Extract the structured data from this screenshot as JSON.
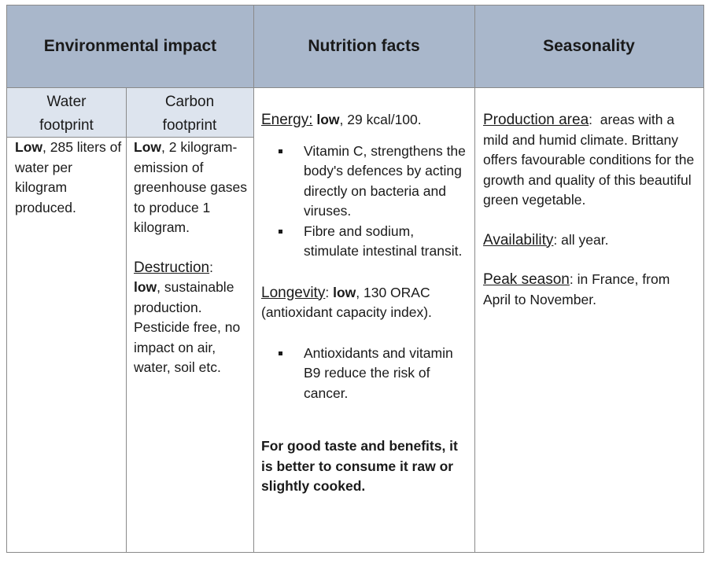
{
  "headers": {
    "environmental": "Environmental impact",
    "nutrition": "Nutrition facts",
    "seasonality": "Seasonality"
  },
  "sub_headers": {
    "water_line1": "Water",
    "water_line2": "footprint",
    "carbon_line1": "Carbon",
    "carbon_line2": "footprint"
  },
  "water": {
    "low": "Low",
    "text": ", 285 liters of water per kilogram produced."
  },
  "carbon": {
    "low": "Low",
    "text": ", 2 kilogram-emission of greenhouse gases to produce 1 kilogram.",
    "destruction_label": "Destruction",
    "destruction_colon": ":",
    "destruction_low": "low",
    "destruction_text": ", sustainable production. Pesticide free, no impact on air, water, soil etc."
  },
  "nutrition": {
    "energy_label": "Energy:",
    "energy_low": "low",
    "energy_text": ", 29 kcal/100.",
    "energy_bullets": [
      "Vitamin C, strengthens the body's defences by acting directly on bacteria and viruses.",
      "Fibre and sodium, stimulate intestinal transit."
    ],
    "longevity_label": "Longevity",
    "longevity_colon": ":",
    "longevity_low": "low",
    "longevity_text": ", 130 ORAC (antioxidant capacity index).",
    "longevity_bullets": [
      "Antioxidants and vitamin B9 reduce the risk of cancer."
    ],
    "advice": "For good taste and benefits, it is better to consume it raw or slightly cooked."
  },
  "seasonality": {
    "production_label": "Production area",
    "production_colon": ":",
    "production_text": "areas with a mild and humid climate. Brittany offers favourable conditions for the growth and quality of this beautiful green vegetable.",
    "availability_label": "Availability",
    "availability_colon": ":",
    "availability_text": " all year.",
    "peak_label": "Peak season",
    "peak_colon": ":",
    "peak_text": " in France, from April to November."
  }
}
